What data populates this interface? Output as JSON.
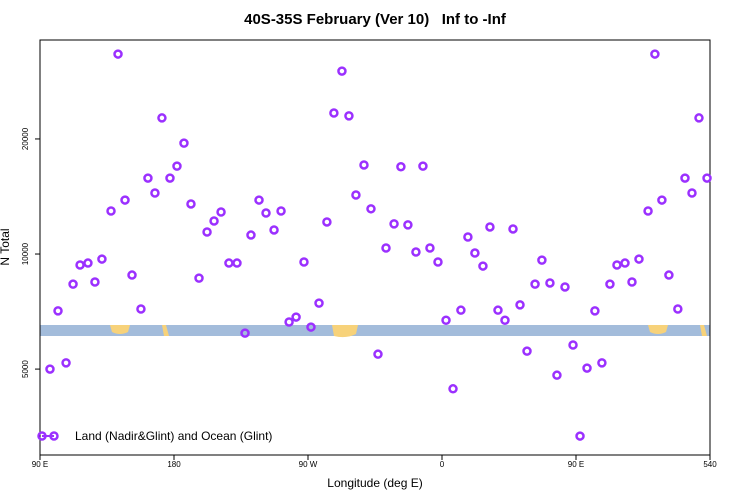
{
  "chart_data": {
    "type": "scatter",
    "title": "40S-35S February (Ver 10)   Inf to -Inf",
    "x_label": "Longitude (deg E)",
    "y_label": "N Total",
    "x": [
      96.7,
      102.1,
      107.5,
      112.2,
      116.9,
      122.2,
      126.9,
      131.6,
      137.7,
      142.4,
      147.1,
      151.8,
      157.8,
      162.5,
      167.2,
      171.9,
      177.3,
      182.0,
      186.7,
      191.4,
      196.8,
      202.2,
      206.9,
      211.6,
      216.9,
      222.3,
      227.7,
      231.7,
      237.1,
      241.8,
      247.2,
      251.9,
      257.3,
      262.0,
      267.3,
      272.0,
      277.4,
      282.7,
      287.4,
      292.8,
      297.5,
      302.2,
      307.6,
      312.3,
      317.0,
      322.4,
      327.8,
      332.4,
      337.1,
      342.5,
      347.2,
      351.9,
      357.3,
      362.7,
      367.4,
      372.7,
      377.4,
      382.1,
      387.5,
      392.2,
      397.6,
      402.3,
      407.7,
      412.4,
      417.1,
      422.5,
      427.1,
      432.5,
      437.2,
      442.6,
      448.0,
      452.7,
      457.4,
      462.7,
      467.4,
      472.8,
      477.5,
      482.9,
      487.6,
      492.3,
      498.4,
      503.0,
      507.7,
      512.4,
      518.4,
      523.2,
      527.9,
      532.6,
      538.0
    ],
    "series": [
      {
        "name": "Land (Nadir&Glint) and Ocean (Glint)",
        "color": "#9b30ff",
        "values": [
          5000,
          7100,
          5190,
          8340,
          9360,
          9470,
          8450,
          9700,
          12960,
          33350,
          13840,
          8810,
          7180,
          15800,
          14440,
          22700,
          15800,
          16980,
          19500,
          13520,
          8650,
          11420,
          12200,
          12880,
          9470,
          9470,
          6210,
          11210,
          13840,
          12800,
          11560,
          12960,
          6640,
          6840,
          9530,
          6440,
          7440,
          12130,
          23380,
          30100,
          22980,
          14270,
          17100,
          13130,
          5470,
          10370,
          11990,
          16920,
          11920,
          10120,
          16980,
          10370,
          9530,
          6710,
          4440,
          7130,
          11080,
          10060,
          9300,
          11770,
          7130,
          6710,
          11630,
          7360,
          5570,
          8340,
          9640,
          8400,
          4820,
          8200,
          5780,
          3340,
          5030,
          7100,
          5190,
          8340,
          9360,
          9470,
          8450,
          9700,
          12960,
          33350,
          13840,
          8810,
          7180,
          15800,
          14440,
          22700,
          15800
        ]
      }
    ],
    "xlim": [
      90,
      540
    ],
    "xticks": [
      {
        "value": 90,
        "label": "90 E"
      },
      180,
      {
        "value": 270,
        "label": "90 W"
      },
      {
        "value": 360,
        "label": "0"
      },
      {
        "value": 450,
        "label": "90 E"
      },
      540
    ],
    "ylim": [
      2980,
      36300
    ],
    "yticks": [
      5000,
      10000,
      20000
    ],
    "ylog": true
  }
}
